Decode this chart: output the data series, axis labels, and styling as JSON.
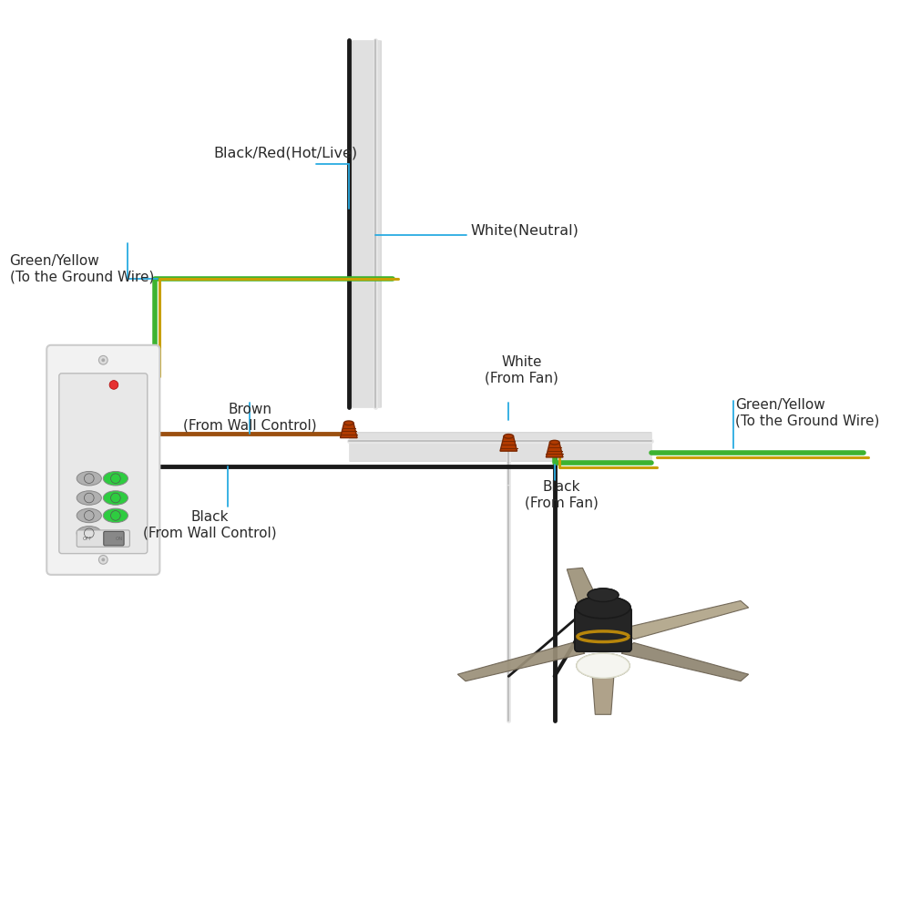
{
  "bg_color": "#ffffff",
  "label_color": "#2a2a2a",
  "annotation_color": "#29abe2",
  "connector_color": "#b03a00",
  "labels": {
    "black_red_hot": "Black/Red(Hot/Live)",
    "white_neutral": "White(Neutral)",
    "green_yellow_left": "Green/Yellow\n(To the Ground Wire)",
    "brown_wall": "Brown\n(From Wall Control)",
    "white_fan": "White\n(From Fan)",
    "green_yellow_right": "Green/Yellow\n(To the Ground Wire)",
    "black_wall": "Black\n(From Wall Control)",
    "black_fan": "Black\n(From Fan)"
  },
  "figsize": [
    10,
    10
  ],
  "dpi": 100
}
